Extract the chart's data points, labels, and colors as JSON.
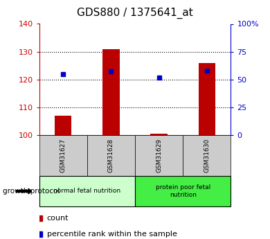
{
  "title": "GDS880 / 1375641_at",
  "samples": [
    "GSM31627",
    "GSM31628",
    "GSM31629",
    "GSM31630"
  ],
  "count_values": [
    107,
    131,
    100.5,
    126
  ],
  "percentile_values": [
    55,
    57,
    52,
    58
  ],
  "left_ylim": [
    100,
    140
  ],
  "left_yticks": [
    100,
    110,
    120,
    130,
    140
  ],
  "right_ylim": [
    0,
    100
  ],
  "right_yticks": [
    0,
    25,
    50,
    75,
    100
  ],
  "right_yticklabels": [
    "0",
    "25",
    "50",
    "75",
    "100%"
  ],
  "bar_color": "#bb0000",
  "dot_color": "#0000cc",
  "bar_base": 100,
  "groups": [
    {
      "label": "normal fetal nutrition",
      "samples": [
        0,
        1
      ],
      "color": "#ccffcc"
    },
    {
      "label": "protein poor fetal\nnutrition",
      "samples": [
        2,
        3
      ],
      "color": "#44ee44"
    }
  ],
  "group_label": "growth protocol",
  "legend_count_label": "count",
  "legend_percentile_label": "percentile rank within the sample",
  "title_fontsize": 11,
  "axis_label_color_left": "#cc0000",
  "axis_label_color_right": "#0000cc",
  "bar_width": 0.35,
  "tick_label_bg": "#cccccc",
  "fig_bg": "#ffffff"
}
